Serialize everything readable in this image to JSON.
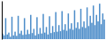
{
  "chart_data": {
    "type": "bar",
    "values": [
      62,
      58,
      95,
      60,
      64,
      55,
      98,
      58,
      66,
      57,
      100,
      62,
      68,
      59,
      95,
      60,
      70,
      61,
      102,
      63,
      72,
      58,
      97,
      61,
      74,
      62,
      104,
      64,
      76,
      60,
      99,
      63,
      78,
      65,
      108,
      66,
      80,
      67,
      110,
      70,
      82,
      68,
      105,
      72,
      84,
      70,
      112,
      74,
      86,
      72,
      115,
      76,
      88,
      74,
      118,
      78,
      100,
      85,
      122,
      80,
      102,
      88,
      126,
      82,
      105,
      92
    ],
    "color": "#4d8dc9",
    "ylim": [
      50,
      132
    ],
    "tick_labels": false
  }
}
